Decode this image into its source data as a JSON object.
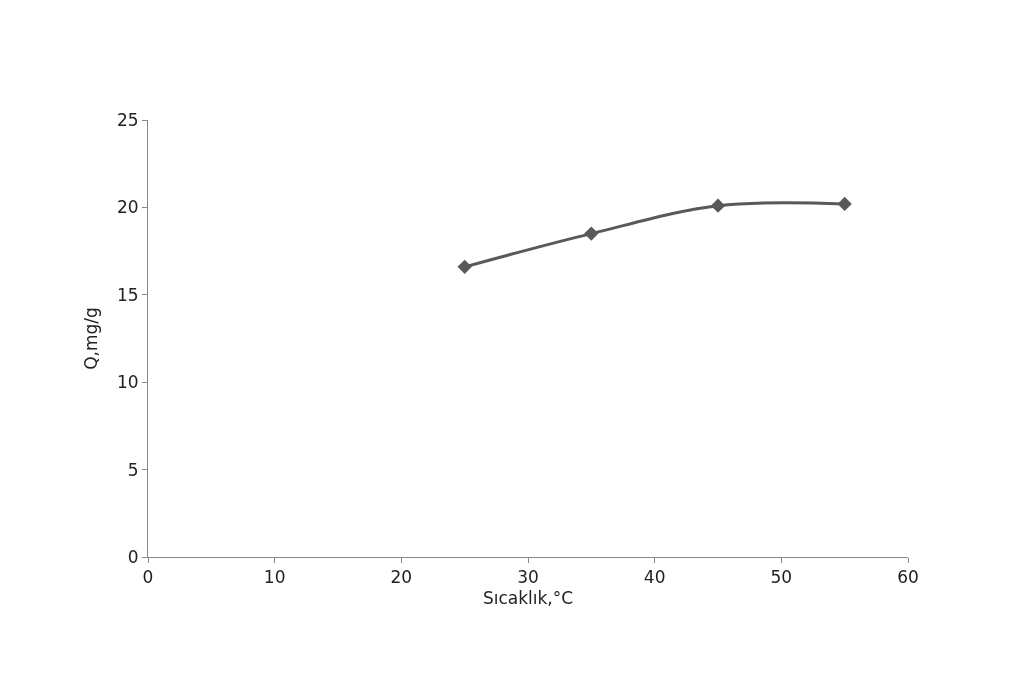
{
  "chart_data": {
    "type": "line",
    "xlabel": "Sıcaklık,°C",
    "ylabel": "Q,mg/g",
    "x": [
      25,
      35,
      45,
      55
    ],
    "series": [
      {
        "color": "#595959",
        "values": [
          16.6,
          18.5,
          20.1,
          20.2
        ]
      }
    ],
    "xlim": [
      0,
      60
    ],
    "xticks": [
      0,
      10,
      20,
      30,
      40,
      50,
      60
    ],
    "ylim": [
      0,
      25
    ],
    "yticks": [
      0,
      5,
      10,
      15,
      20,
      25
    ],
    "legend": false,
    "marker": "diamond",
    "line_style": "solid"
  }
}
